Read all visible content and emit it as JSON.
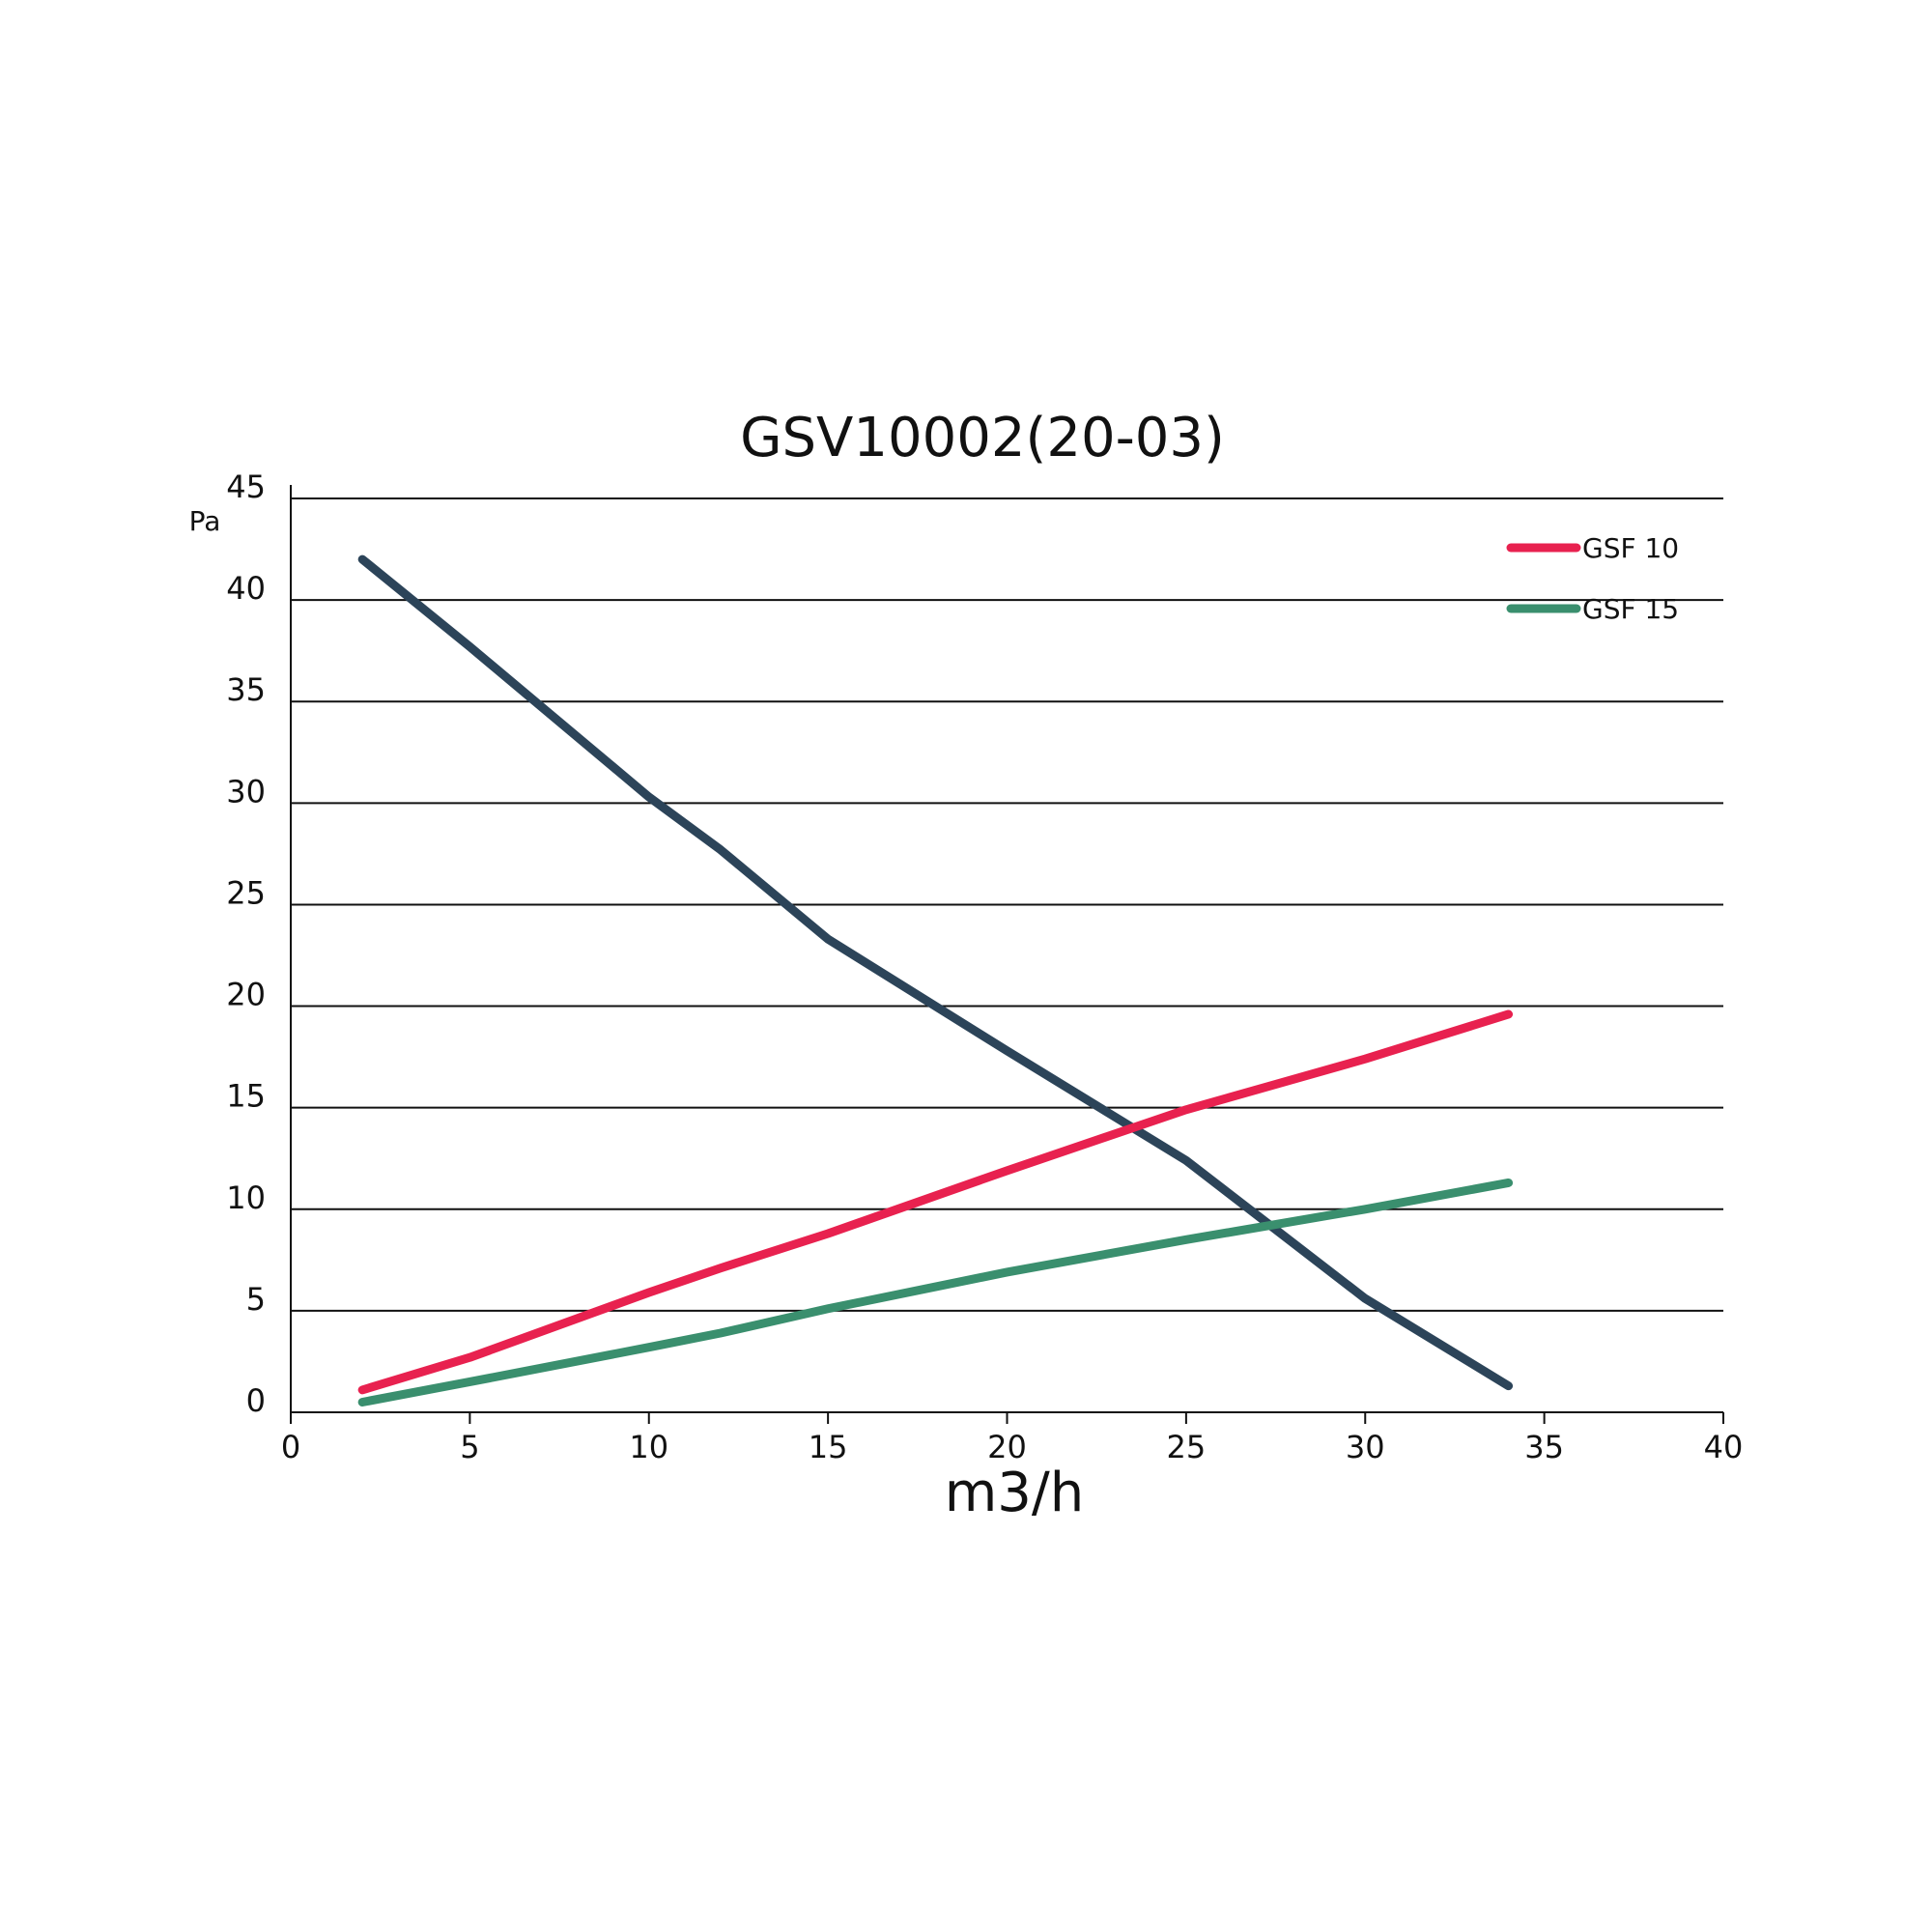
{
  "chart_data": {
    "type": "line",
    "title": "GSV10002(20-03)",
    "xlabel": "m3/h",
    "ylabel": "Pa",
    "x": [
      2,
      5,
      10,
      12,
      15,
      20,
      25,
      30,
      34
    ],
    "series": [
      {
        "color": "#2c4459",
        "values": [
          42,
          37.7,
          30.3,
          27.7,
          23.3,
          17.8,
          12.4,
          5.6,
          1.3
        ]
      },
      {
        "name": "GSF 10",
        "color": "#e8214f",
        "values": [
          1.1,
          2.7,
          5.9,
          7.1,
          8.8,
          11.9,
          14.9,
          17.4,
          19.6
        ]
      },
      {
        "name": "GSF 15",
        "color": "#3a8f6e",
        "values": [
          0.5,
          1.5,
          3.2,
          3.9,
          5.1,
          6.9,
          8.5,
          10.0,
          11.3
        ]
      }
    ],
    "xlim": [
      0,
      40
    ],
    "xticks": [
      0,
      5,
      10,
      15,
      20,
      25,
      30,
      35,
      40
    ],
    "ylim": [
      0,
      45
    ],
    "yticks": [
      0,
      5,
      10,
      15,
      20,
      25,
      30,
      35,
      40,
      45
    ],
    "grid": true,
    "legend": "upper right"
  }
}
